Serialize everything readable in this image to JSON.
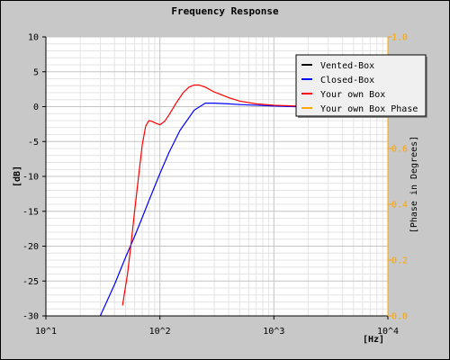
{
  "chart_data": {
    "type": "line",
    "title": "Frequency Response",
    "xlabel": "[Hz]",
    "ylabel": "[dB]",
    "y2label": "[Phase in Degrees]",
    "xscale": "log",
    "xlim": [
      10,
      10000
    ],
    "ylim": [
      -30,
      10
    ],
    "y2lim": [
      0.0,
      1.0
    ],
    "grid": true,
    "legend_position": "top-right",
    "x_ticks": [
      {
        "value": 10,
        "label": "10^1"
      },
      {
        "value": 100,
        "label": "10^2"
      },
      {
        "value": 1000,
        "label": "10^3"
      },
      {
        "value": 10000,
        "label": "10^4"
      }
    ],
    "y_ticks": [
      10,
      5,
      0,
      -5,
      -10,
      -15,
      -20,
      -25,
      -30
    ],
    "y2_ticks": [
      "1.0",
      "0.8",
      "0.6",
      "0.4",
      "0.2",
      "0.0"
    ],
    "series": [
      {
        "name": "Vented-Box",
        "color": "#000000",
        "x": [],
        "y": []
      },
      {
        "name": "Closed-Box",
        "color": "#0000ff",
        "x": [
          30,
          40,
          50,
          60,
          70,
          80,
          100,
          120,
          150,
          200,
          250,
          300,
          400,
          500,
          700,
          1000,
          1500,
          2000,
          2500
        ],
        "y": [
          -30,
          -25.5,
          -21.6,
          -18.6,
          -15.9,
          -13.5,
          -9.6,
          -6.6,
          -3.4,
          -0.5,
          0.5,
          0.5,
          0.4,
          0.3,
          0.2,
          0.1,
          0.0,
          0.0,
          0.0
        ]
      },
      {
        "name": "Your own Box",
        "color": "#ff0000",
        "x": [
          47,
          52,
          56,
          60,
          65,
          70,
          75,
          80,
          85,
          90,
          100,
          110,
          120,
          140,
          160,
          180,
          200,
          220,
          250,
          300,
          400,
          500,
          700,
          1000,
          1500,
          2000,
          2500
        ],
        "y": [
          -28.5,
          -24,
          -19.5,
          -15,
          -10,
          -5.5,
          -2.8,
          -2.0,
          -2.1,
          -2.3,
          -2.6,
          -2.1,
          -1.2,
          0.6,
          2.0,
          2.8,
          3.1,
          3.1,
          2.8,
          2.1,
          1.3,
          0.8,
          0.4,
          0.2,
          0.1,
          0.0,
          0.0
        ]
      },
      {
        "name": "Your own Box Phase",
        "color": "#ffa500",
        "x": [],
        "y": []
      }
    ]
  }
}
